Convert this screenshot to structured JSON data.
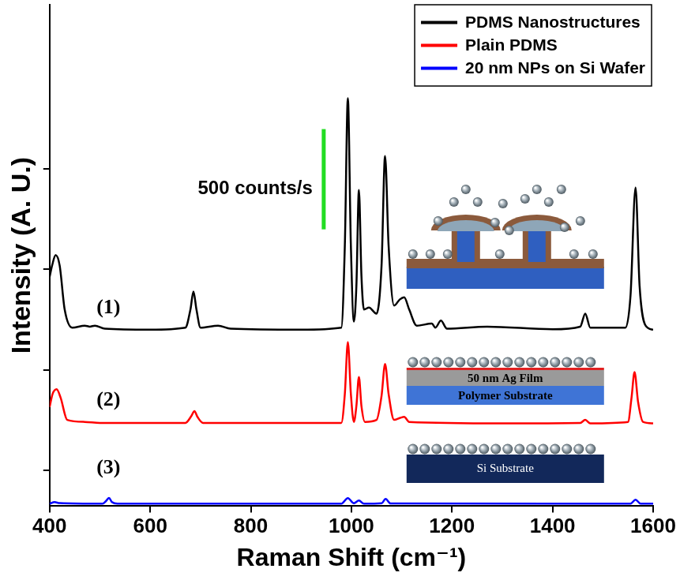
{
  "chart_data": {
    "type": "line",
    "x_label": "Raman Shift (cm⁻¹)",
    "y_label": "Intensity (A. U.)",
    "xlim": [
      400,
      1600
    ],
    "xticks": [
      400,
      600,
      800,
      1000,
      1200,
      1400,
      1600
    ],
    "ylim": [
      0,
      2500
    ],
    "yticks": [
      180,
      680,
      1180,
      1680
    ],
    "tick_labels": "x",
    "grid": false,
    "legend": "top-right",
    "series": [
      {
        "name": "PDMS Nanostructures",
        "color": "#000000",
        "x": [
          400,
          405,
          412,
          420,
          430,
          445,
          470,
          480,
          490,
          510,
          600,
          670,
          680,
          686,
          692,
          700,
          735,
          760,
          900,
          980,
          987,
          993,
          999,
          1005,
          1010,
          1015,
          1020,
          1025,
          1035,
          1050,
          1060,
          1067,
          1074,
          1085,
          1096,
          1105,
          1115,
          1130,
          1160,
          1167,
          1178,
          1190,
          1270,
          1400,
          1455,
          1465,
          1475,
          1545,
          1555,
          1565,
          1573,
          1585,
          1600
        ],
        "values": [
          1143,
          1200,
          1252,
          1200,
          980,
          890,
          900,
          895,
          900,
          885,
          880,
          890,
          980,
          1070,
          980,
          890,
          900,
          885,
          880,
          890,
          1300,
          2034,
          1300,
          920,
          1100,
          1576,
          1150,
          980,
          990,
          960,
          1200,
          1746,
          1300,
          1000,
          1030,
          1041,
          980,
          900,
          910,
          890,
          925,
          885,
          895,
          882,
          895,
          960,
          890,
          890,
          1050,
          1588,
          1100,
          900,
          880
        ]
      },
      {
        "name": "Plain PDMS",
        "color": "#ff0000",
        "x": [
          400,
          406,
          414,
          422,
          435,
          470,
          500,
          670,
          682,
          688,
          694,
          705,
          980,
          987,
          993,
          999,
          1005,
          1010,
          1015,
          1020,
          1027,
          1050,
          1060,
          1067,
          1074,
          1085,
          1097,
          1105,
          1115,
          1300,
          1455,
          1465,
          1475,
          1550,
          1557,
          1563,
          1570,
          1580,
          1600
        ],
        "values": [
          494,
          560,
          583,
          540,
          430,
          420,
          415,
          415,
          450,
          474,
          445,
          415,
          415,
          560,
          818,
          560,
          420,
          500,
          644,
          500,
          420,
          430,
          550,
          709,
          560,
          430,
          440,
          445,
          420,
          413,
          415,
          430,
          413,
          420,
          540,
          668,
          520,
          420,
          413
        ]
      },
      {
        "name": "20 nm NPs on Si Wafer",
        "color": "#0000ff",
        "x": [
          400,
          410,
          420,
          505,
          512,
          518,
          524,
          535,
          980,
          993,
          1005,
          1015,
          1025,
          1060,
          1068,
          1078,
          1555,
          1565,
          1575,
          1600
        ],
        "values": [
          12,
          20,
          15,
          12,
          25,
          41,
          20,
          12,
          12,
          40,
          14,
          28,
          12,
          14,
          36,
          13,
          12,
          32,
          12,
          12
        ]
      }
    ],
    "annotations": [
      {
        "text": "(1)",
        "x": 517,
        "y": 988
      },
      {
        "text": "(2)",
        "x": 517,
        "y": 527
      },
      {
        "text": "(3)",
        "x": 517,
        "y": 190
      }
    ],
    "scale_bar": {
      "x": 945,
      "y": 1380,
      "value": 500,
      "label": "500 counts/s",
      "color": "#22dd22"
    },
    "insets": [
      {
        "series": "PDMS Nanostructures",
        "layers": []
      },
      {
        "series": "Plain PDMS",
        "layers": [
          "50 nm Ag Film",
          "Polymer Substrate"
        ]
      },
      {
        "series": "20 nm NPs on Si Wafer",
        "layers": [
          "Si Substrate"
        ]
      }
    ]
  }
}
